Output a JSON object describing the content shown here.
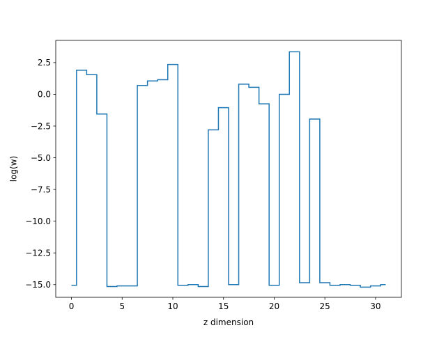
{
  "chart_data": {
    "type": "line",
    "drawstyle": "steps-mid",
    "xlabel": "z dimension",
    "ylabel": "log(w)",
    "xlim": [
      -1.55,
      32.55
    ],
    "ylim": [
      -16.0,
      4.25
    ],
    "xticks": [
      0,
      5,
      10,
      15,
      20,
      25,
      30
    ],
    "yticks": [
      -15.0,
      -12.5,
      -10.0,
      -7.5,
      -5.0,
      -2.5,
      0.0,
      2.5
    ],
    "ytick_labels": [
      "−15.0",
      "−12.5",
      "−10.0",
      "−7.5",
      "−5.0",
      "−2.5",
      "0.0",
      "2.5"
    ],
    "grid": false,
    "series": [
      {
        "color": "#1f77b4",
        "x": [
          0,
          1,
          2,
          3,
          4,
          5,
          6,
          7,
          8,
          9,
          10,
          11,
          12,
          13,
          14,
          15,
          16,
          17,
          18,
          19,
          20,
          21,
          22,
          23,
          24,
          25,
          26,
          27,
          28,
          29,
          30,
          31
        ],
        "y": [
          -15.05,
          1.9,
          1.55,
          -1.55,
          -15.15,
          -15.1,
          -15.1,
          0.7,
          1.05,
          1.15,
          2.35,
          -15.05,
          -15.0,
          -15.15,
          -2.8,
          -1.05,
          -15.0,
          0.8,
          0.55,
          -0.75,
          -15.05,
          0.0,
          3.35,
          -14.85,
          -1.95,
          -14.85,
          -15.05,
          -15.0,
          -15.05,
          -15.2,
          -15.1,
          -15.0
        ]
      }
    ]
  }
}
